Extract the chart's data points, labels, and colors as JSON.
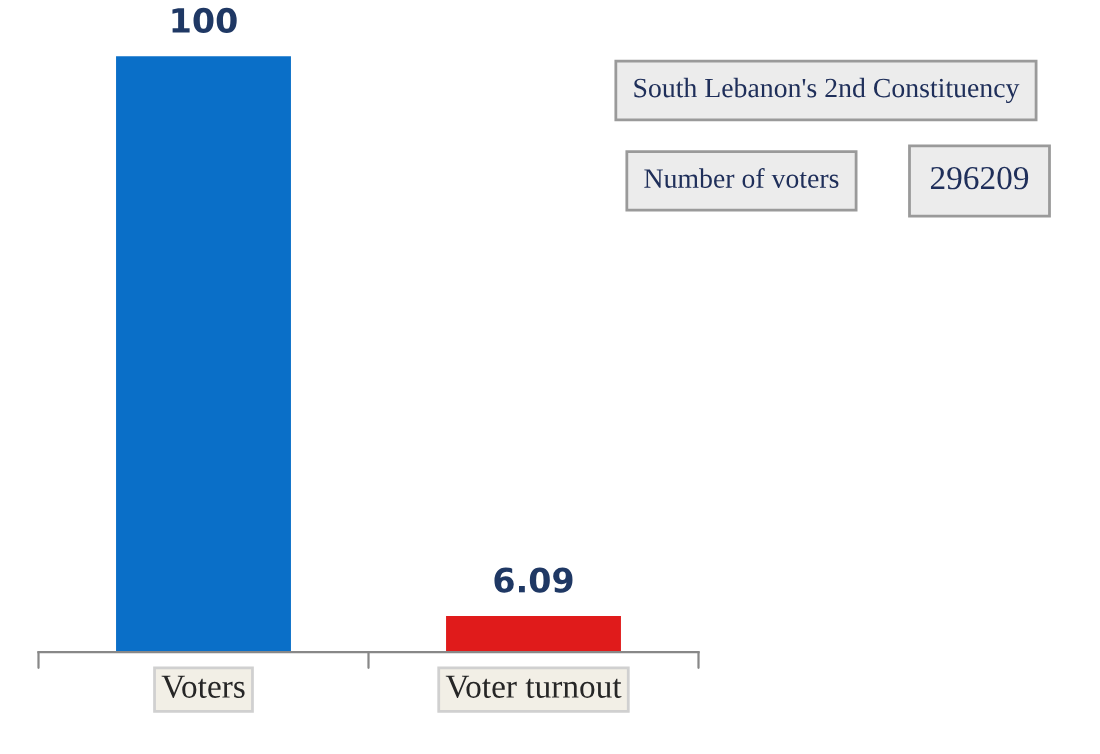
{
  "chart_data": {
    "type": "bar",
    "categories": [
      "Voters",
      "Voter turnout"
    ],
    "values": [
      100,
      6.09
    ],
    "colors": [
      "#0a6fc8",
      "#e01b1b"
    ],
    "data_labels": true,
    "annotations": [
      "South Lebanon's 2nd Constituency",
      "Number of voters",
      "296209"
    ],
    "grid": false,
    "legend": false
  }
}
